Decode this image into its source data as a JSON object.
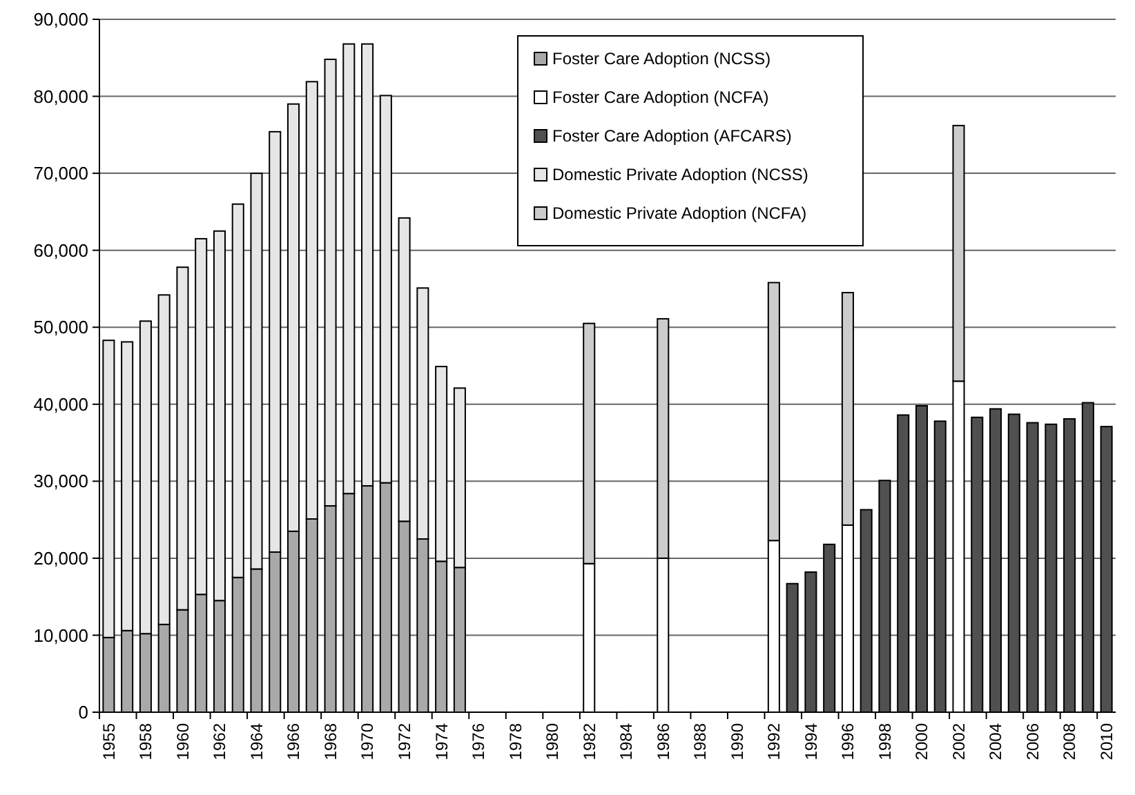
{
  "chart_data": {
    "type": "bar",
    "stacked": true,
    "categories": [
      "1955",
      null,
      "1958",
      null,
      "1960",
      null,
      "1962",
      null,
      "1964",
      null,
      "1966",
      null,
      "1968",
      null,
      "1970",
      null,
      "1972",
      null,
      "1974",
      null,
      "1976",
      null,
      "1978",
      null,
      "1980",
      null,
      "1982",
      null,
      "1984",
      null,
      "1986",
      null,
      "1988",
      null,
      "1990",
      null,
      "1992",
      null,
      "1994",
      null,
      "1996",
      null,
      "1998",
      null,
      "2000",
      null,
      "2002",
      null,
      "2004",
      null,
      "2006",
      null,
      "2008",
      null,
      "2010"
    ],
    "series": [
      {
        "name": "Foster Care Adoption (NCSS)",
        "color": "#a9a9a9",
        "values": [
          9700,
          10600,
          10200,
          11400,
          13300,
          15300,
          14500,
          17500,
          18600,
          20800,
          23500,
          25100,
          26800,
          28400,
          29400,
          29800,
          24800,
          22500,
          19600,
          18800,
          null,
          null,
          null,
          null,
          null,
          null,
          null,
          null,
          null,
          null,
          null,
          null,
          null,
          null,
          null,
          null,
          null,
          null,
          null,
          null,
          null,
          null,
          null,
          null,
          null,
          null,
          null,
          null,
          null,
          null,
          null,
          null,
          null,
          null,
          null
        ]
      },
      {
        "name": "Foster Care Adoption (NCFA)",
        "color": "#ffffff",
        "values": [
          null,
          null,
          null,
          null,
          null,
          null,
          null,
          null,
          null,
          null,
          null,
          null,
          null,
          null,
          null,
          null,
          null,
          null,
          null,
          null,
          null,
          null,
          null,
          null,
          null,
          null,
          19300,
          null,
          null,
          null,
          20000,
          null,
          null,
          null,
          null,
          null,
          22300,
          null,
          null,
          null,
          24300,
          null,
          null,
          null,
          null,
          null,
          43000,
          null,
          null,
          null,
          null,
          null,
          null,
          null,
          null
        ]
      },
      {
        "name": "Foster Care Adoption (AFCARS)",
        "color": "#505050",
        "values": [
          null,
          null,
          null,
          null,
          null,
          null,
          null,
          null,
          null,
          null,
          null,
          null,
          null,
          null,
          null,
          null,
          null,
          null,
          null,
          null,
          null,
          null,
          null,
          null,
          null,
          null,
          null,
          null,
          null,
          null,
          null,
          null,
          null,
          null,
          null,
          null,
          null,
          16700,
          18200,
          21800,
          null,
          26300,
          30100,
          38600,
          39800,
          37800,
          null,
          38300,
          39400,
          38700,
          37600,
          37400,
          38100,
          40200,
          37100
        ]
      },
      {
        "name": "Domestic Private Adoption (NCSS)",
        "color": "#e6e6e6",
        "values": [
          38600,
          37500,
          40600,
          42800,
          44500,
          46200,
          48000,
          48500,
          51400,
          54600,
          55500,
          56800,
          58000,
          58400,
          57400,
          50300,
          39400,
          32600,
          25300,
          23300,
          null,
          null,
          null,
          null,
          null,
          null,
          null,
          null,
          null,
          null,
          null,
          null,
          null,
          null,
          null,
          null,
          null,
          null,
          null,
          null,
          null,
          null,
          null,
          null,
          null,
          null,
          null,
          null,
          null,
          null,
          null,
          null,
          null,
          null,
          null
        ]
      },
      {
        "name": "Domestic Private Adoption (NCFA)",
        "color": "#cccccc",
        "values": [
          null,
          null,
          null,
          null,
          null,
          null,
          null,
          null,
          null,
          null,
          null,
          null,
          null,
          null,
          null,
          null,
          null,
          null,
          null,
          null,
          null,
          null,
          null,
          null,
          null,
          null,
          31200,
          null,
          null,
          null,
          31100,
          null,
          null,
          null,
          null,
          null,
          33500,
          null,
          null,
          null,
          30200,
          null,
          null,
          null,
          null,
          null,
          33200,
          null,
          null,
          null,
          null,
          null,
          null,
          null,
          null
        ]
      }
    ],
    "ylim": [
      0,
      90000
    ],
    "yticks": [
      0,
      {
        "value": 10000,
        "label": "10,000"
      },
      {
        "value": 20000,
        "label": "20,000"
      },
      {
        "value": 30000,
        "label": "30,000"
      },
      {
        "value": 40000,
        "label": "40,000"
      },
      {
        "value": 50000,
        "label": "50,000"
      },
      {
        "value": 60000,
        "label": "60,000"
      },
      {
        "value": 70000,
        "label": "70,000"
      },
      {
        "value": 80000,
        "label": "80,000"
      },
      {
        "value": 90000,
        "label": "90,000"
      }
    ],
    "grid": "y",
    "legend": "top"
  }
}
